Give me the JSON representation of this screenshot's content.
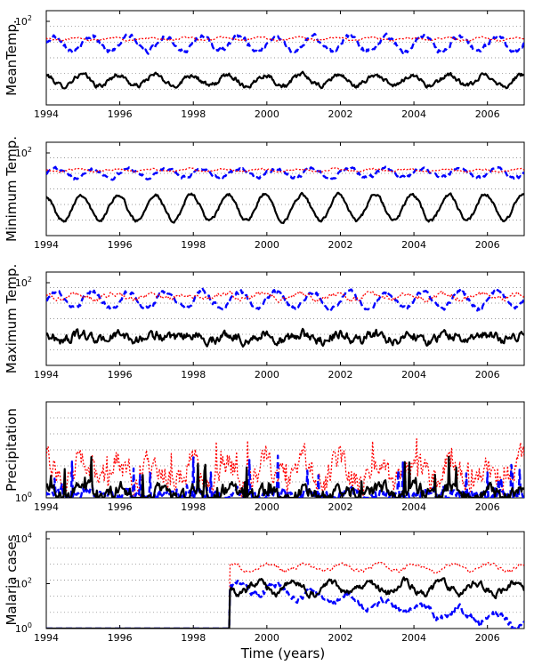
{
  "figure": {
    "xlabel": "Time (years)"
  },
  "chart_data": [
    {
      "type": "line",
      "ylabel": "MeanTemp.",
      "xlim": [
        1994,
        2007
      ],
      "x_ticks": [
        "1994",
        "1996",
        "1998",
        "2000",
        "2002",
        "2004",
        "2006"
      ],
      "y_ticks": [
        {
          "base": "10",
          "exp": "2"
        }
      ],
      "series": [
        {
          "name": "black",
          "color": "#000000",
          "style": "solid",
          "level": 0.26,
          "amp": 0.06,
          "period": 1.0,
          "phase": 0.3,
          "noise": 0.02
        },
        {
          "name": "blue",
          "color": "#0000ff",
          "style": "dashed",
          "level": 0.65,
          "amp": 0.08,
          "period": 1.0,
          "phase": 0.0,
          "noise": 0.02
        },
        {
          "name": "red",
          "color": "#ff0000",
          "style": "dotted",
          "level": 0.7,
          "amp": 0.015,
          "period": 1.0,
          "phase": 0.4,
          "noise": 0.008
        }
      ]
    },
    {
      "type": "line",
      "ylabel": "Minimum Temp.",
      "xlim": [
        1994,
        2007
      ],
      "x_ticks": [
        "1994",
        "1996",
        "1998",
        "2000",
        "2002",
        "2004",
        "2006"
      ],
      "y_ticks": [
        {
          "base": "10",
          "exp": "2"
        }
      ],
      "series": [
        {
          "name": "black",
          "color": "#000000",
          "style": "solid",
          "level": 0.3,
          "amp": 0.14,
          "period": 1.0,
          "phase": 0.3,
          "noise": 0.015
        },
        {
          "name": "blue",
          "color": "#0000ff",
          "style": "dashed",
          "level": 0.67,
          "amp": 0.05,
          "period": 1.0,
          "phase": 0.0,
          "noise": 0.015
        },
        {
          "name": "red",
          "color": "#ff0000",
          "style": "dotted",
          "level": 0.7,
          "amp": 0.012,
          "period": 1.0,
          "phase": 0.4,
          "noise": 0.008
        }
      ]
    },
    {
      "type": "line",
      "ylabel": "Maximum Temp.",
      "xlim": [
        1994,
        2007
      ],
      "x_ticks": [
        "1994",
        "1996",
        "1998",
        "2000",
        "2002",
        "2004",
        "2006"
      ],
      "y_ticks": [
        {
          "base": "10",
          "exp": "2"
        }
      ],
      "series": [
        {
          "name": "black",
          "color": "#000000",
          "style": "solid",
          "level": 0.3,
          "amp": 0.03,
          "period": 1.0,
          "phase": 0.3,
          "noise": 0.04
        },
        {
          "name": "blue",
          "color": "#0000ff",
          "style": "dashed",
          "level": 0.7,
          "amp": 0.09,
          "period": 1.0,
          "phase": 0.0,
          "noise": 0.02
        },
        {
          "name": "red",
          "color": "#ff0000",
          "style": "dotted",
          "level": 0.74,
          "amp": 0.03,
          "period": 1.0,
          "phase": 0.4,
          "noise": 0.02
        }
      ]
    },
    {
      "type": "line",
      "ylabel": "Precipitation",
      "xlim": [
        1994,
        2007
      ],
      "x_ticks": [
        "1994",
        "1996",
        "1998",
        "2000",
        "2002",
        "2004",
        "2006"
      ],
      "y_ticks": [
        {
          "base": "10",
          "exp": "0"
        }
      ],
      "series": [
        {
          "name": "red",
          "color": "#ff0000",
          "style": "dotted",
          "level": 0.26,
          "amp": 0.1,
          "period": 1.0,
          "phase": 0.3,
          "noise": 0.12
        },
        {
          "name": "blue",
          "color": "#0000ff",
          "style": "dashed",
          "level": 0.03,
          "amp": 0.02,
          "period": 1.0,
          "phase": 0.0,
          "noise": 0.05
        },
        {
          "name": "black",
          "color": "#000000",
          "style": "solid",
          "level": 0.05,
          "amp": 0.05,
          "period": 1.0,
          "phase": 0.2,
          "noise": 0.06
        }
      ]
    },
    {
      "type": "line",
      "ylabel": "Malaria cases",
      "xlim": [
        1994,
        2007
      ],
      "x_ticks": [
        "1994",
        "1996",
        "1998",
        "2000",
        "2002",
        "2004",
        "2006"
      ],
      "y_ticks": [
        {
          "base": "10",
          "exp": "4"
        },
        {
          "base": "10",
          "exp": "2"
        },
        {
          "base": "10",
          "exp": "0"
        }
      ],
      "series": [
        {
          "name": "red",
          "color": "#ff0000",
          "style": "dotted",
          "level": 0.63,
          "amp": 0.04,
          "period": 1.0,
          "phase": 0.2,
          "noise": 0.015,
          "start": 1999.0,
          "base": 0.0
        },
        {
          "name": "blue",
          "color": "#0000ff",
          "style": "dashed",
          "level": 0.45,
          "amp": 0.06,
          "period": 1.0,
          "phase": 0.0,
          "noise": 0.03,
          "start": 1999.0,
          "base": 0.0,
          "trend": -0.05
        },
        {
          "name": "black",
          "color": "#000000",
          "style": "solid",
          "level": 0.42,
          "amp": 0.06,
          "period": 1.0,
          "phase": 0.5,
          "noise": 0.03,
          "start": 1999.0,
          "base": 0.0
        }
      ]
    }
  ]
}
